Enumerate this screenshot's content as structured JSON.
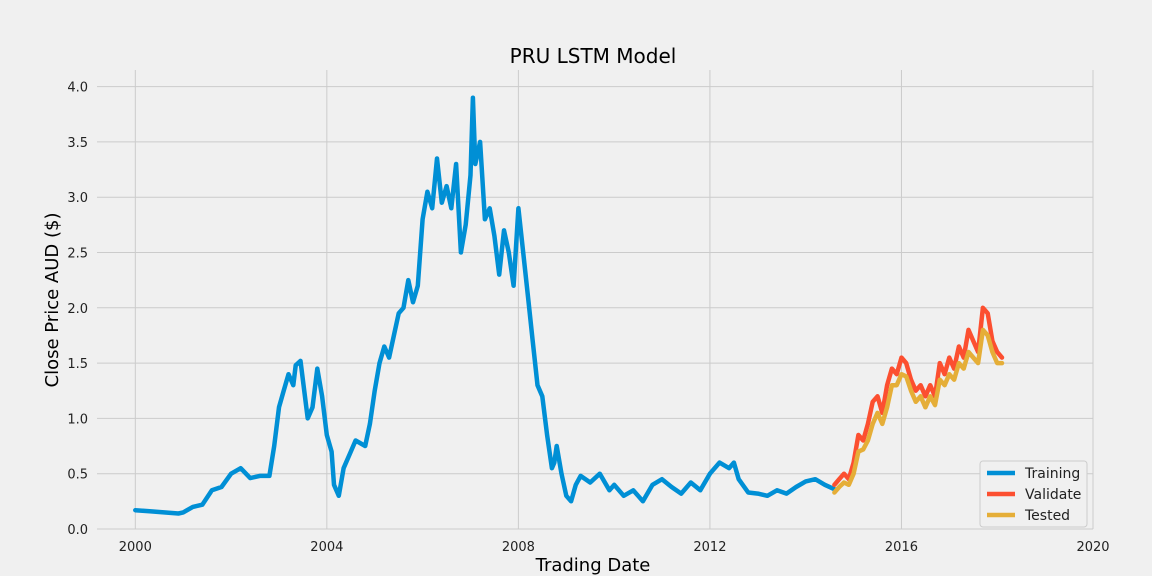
{
  "chart_data": {
    "type": "line",
    "title": "PRU LSTM Model",
    "xlabel": "Trading Date",
    "ylabel": "Close Price AUD ($)",
    "xlim": [
      1999.2,
      2020.0
    ],
    "ylim": [
      0.0,
      4.15
    ],
    "xticks": [
      2000,
      2004,
      2008,
      2012,
      2016,
      2020
    ],
    "xtick_labels": [
      "2000",
      "2004",
      "2008",
      "2012",
      "2016",
      "2020"
    ],
    "yticks": [
      0.0,
      0.5,
      1.0,
      1.5,
      2.0,
      2.5,
      3.0,
      3.5,
      4.0
    ],
    "ytick_labels": [
      "0.0",
      "0.5",
      "1.0",
      "1.5",
      "2.0",
      "2.5",
      "3.0",
      "3.5",
      "4.0"
    ],
    "grid": true,
    "legend_position": "bottom-right",
    "series": [
      {
        "name": "Training",
        "color": "#008fd5",
        "x": [
          2000.0,
          2000.3,
          2000.6,
          2000.9,
          2001.0,
          2001.2,
          2001.4,
          2001.6,
          2001.8,
          2002.0,
          2002.2,
          2002.4,
          2002.6,
          2002.8,
          2002.9,
          2003.0,
          2003.1,
          2003.2,
          2003.3,
          2003.35,
          2003.45,
          2003.6,
          2003.7,
          2003.8,
          2003.9,
          2004.0,
          2004.1,
          2004.15,
          2004.25,
          2004.35,
          2004.5,
          2004.6,
          2004.8,
          2004.9,
          2005.0,
          2005.1,
          2005.2,
          2005.3,
          2005.4,
          2005.5,
          2005.6,
          2005.7,
          2005.8,
          2005.9,
          2006.0,
          2006.1,
          2006.2,
          2006.3,
          2006.4,
          2006.5,
          2006.6,
          2006.7,
          2006.8,
          2006.9,
          2007.0,
          2007.05,
          2007.1,
          2007.2,
          2007.3,
          2007.4,
          2007.5,
          2007.6,
          2007.7,
          2007.8,
          2007.9,
          2008.0,
          2008.1,
          2008.2,
          2008.3,
          2008.4,
          2008.5,
          2008.6,
          2008.7,
          2008.75,
          2008.8,
          2008.9,
          2009.0,
          2009.1,
          2009.2,
          2009.3,
          2009.5,
          2009.7,
          2009.9,
          2010.0,
          2010.2,
          2010.4,
          2010.6,
          2010.8,
          2011.0,
          2011.2,
          2011.4,
          2011.6,
          2011.8,
          2012.0,
          2012.2,
          2012.4,
          2012.5,
          2012.6,
          2012.8,
          2013.0,
          2013.2,
          2013.4,
          2013.6,
          2013.8,
          2014.0,
          2014.2,
          2014.4,
          2014.6
        ],
        "values": [
          0.17,
          0.16,
          0.15,
          0.14,
          0.15,
          0.2,
          0.22,
          0.35,
          0.38,
          0.5,
          0.55,
          0.46,
          0.48,
          0.48,
          0.75,
          1.1,
          1.25,
          1.4,
          1.3,
          1.48,
          1.52,
          1.0,
          1.1,
          1.45,
          1.2,
          0.85,
          0.7,
          0.4,
          0.3,
          0.55,
          0.7,
          0.8,
          0.75,
          0.95,
          1.25,
          1.5,
          1.65,
          1.55,
          1.75,
          1.95,
          2.0,
          2.25,
          2.05,
          2.2,
          2.8,
          3.05,
          2.9,
          3.35,
          2.95,
          3.1,
          2.9,
          3.3,
          2.5,
          2.75,
          3.2,
          3.9,
          3.3,
          3.5,
          2.8,
          2.9,
          2.65,
          2.3,
          2.7,
          2.5,
          2.2,
          2.9,
          2.5,
          2.1,
          1.7,
          1.3,
          1.2,
          0.85,
          0.55,
          0.6,
          0.75,
          0.5,
          0.3,
          0.25,
          0.4,
          0.48,
          0.42,
          0.5,
          0.35,
          0.4,
          0.3,
          0.35,
          0.25,
          0.4,
          0.45,
          0.38,
          0.32,
          0.42,
          0.35,
          0.5,
          0.6,
          0.55,
          0.6,
          0.45,
          0.33,
          0.32,
          0.3,
          0.35,
          0.32,
          0.38,
          0.43,
          0.45,
          0.4,
          0.36
        ]
      },
      {
        "name": "Validate",
        "color": "#fc4f30",
        "x": [
          2014.6,
          2014.7,
          2014.8,
          2014.9,
          2015.0,
          2015.1,
          2015.2,
          2015.3,
          2015.4,
          2015.5,
          2015.6,
          2015.7,
          2015.8,
          2015.9,
          2016.0,
          2016.1,
          2016.2,
          2016.3,
          2016.4,
          2016.5,
          2016.6,
          2016.7,
          2016.8,
          2016.9,
          2017.0,
          2017.1,
          2017.2,
          2017.3,
          2017.4,
          2017.5,
          2017.6,
          2017.7,
          2017.8,
          2017.9,
          2018.0,
          2018.1
        ],
        "values": [
          0.4,
          0.45,
          0.5,
          0.45,
          0.6,
          0.85,
          0.8,
          0.95,
          1.15,
          1.2,
          1.05,
          1.3,
          1.45,
          1.4,
          1.55,
          1.5,
          1.35,
          1.25,
          1.3,
          1.2,
          1.3,
          1.2,
          1.5,
          1.4,
          1.55,
          1.45,
          1.65,
          1.55,
          1.8,
          1.7,
          1.6,
          2.0,
          1.95,
          1.7,
          1.6,
          1.55
        ]
      },
      {
        "name": "Tested",
        "color": "#e5ae38",
        "x": [
          2014.6,
          2014.7,
          2014.8,
          2014.9,
          2015.0,
          2015.1,
          2015.2,
          2015.3,
          2015.4,
          2015.5,
          2015.6,
          2015.7,
          2015.8,
          2015.9,
          2016.0,
          2016.1,
          2016.2,
          2016.3,
          2016.4,
          2016.5,
          2016.6,
          2016.7,
          2016.8,
          2016.9,
          2017.0,
          2017.1,
          2017.2,
          2017.3,
          2017.4,
          2017.5,
          2017.6,
          2017.7,
          2017.8,
          2017.9,
          2018.0,
          2018.1
        ],
        "values": [
          0.33,
          0.38,
          0.42,
          0.4,
          0.5,
          0.7,
          0.72,
          0.8,
          0.95,
          1.05,
          0.95,
          1.1,
          1.3,
          1.3,
          1.4,
          1.38,
          1.25,
          1.15,
          1.2,
          1.1,
          1.2,
          1.12,
          1.35,
          1.3,
          1.4,
          1.35,
          1.5,
          1.45,
          1.6,
          1.55,
          1.5,
          1.8,
          1.75,
          1.6,
          1.5,
          1.5
        ]
      }
    ]
  }
}
